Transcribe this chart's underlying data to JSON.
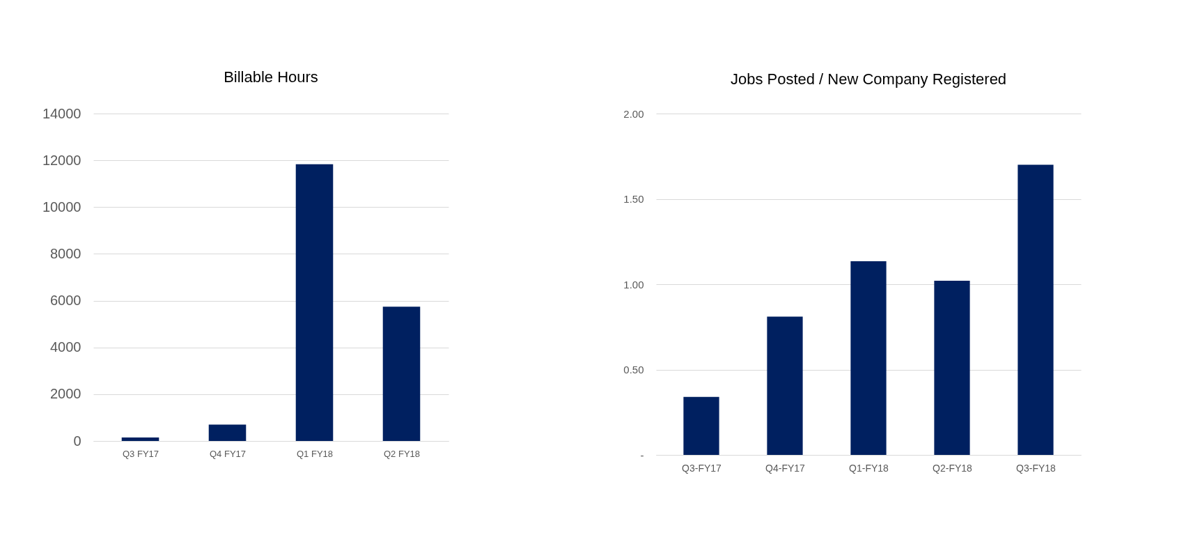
{
  "chart_data": [
    {
      "type": "bar",
      "title": "Billable Hours",
      "categories": [
        "Q3 FY17",
        "Q4 FY17",
        "Q1 FY18",
        "Q2 FY18"
      ],
      "values": [
        150,
        700,
        11830,
        5740
      ],
      "color": "#002060",
      "ylim": [
        0,
        14000
      ],
      "yticks": [
        0,
        2000,
        4000,
        6000,
        8000,
        10000,
        12000,
        14000
      ],
      "grid": "y"
    },
    {
      "type": "bar",
      "title": "Jobs Posted / New Company Registered",
      "categories": [
        "Q3-FY17",
        "Q4-FY17",
        "Q1-FY18",
        "Q2-FY18",
        "Q3-FY18"
      ],
      "values": [
        0.34,
        0.81,
        1.135,
        1.02,
        1.7
      ],
      "color": "#002060",
      "ylim": [
        0,
        2
      ],
      "yticks": [
        {
          "value": 0,
          "label": "-"
        },
        {
          "value": 0.5,
          "label": "0.50"
        },
        {
          "value": 1,
          "label": "1.00"
        },
        {
          "value": 1.5,
          "label": "1.50"
        },
        {
          "value": 2,
          "label": "2.00"
        }
      ],
      "grid": "y"
    }
  ]
}
